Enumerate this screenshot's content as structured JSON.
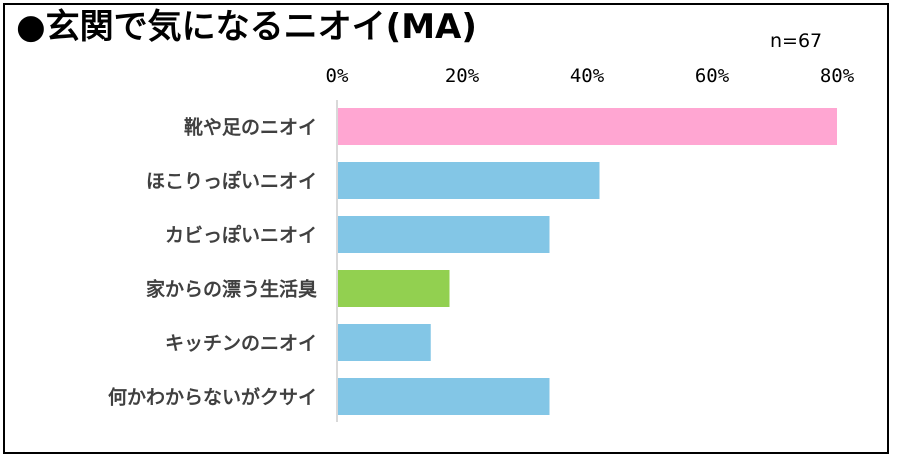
{
  "chart_data": {
    "type": "bar",
    "orientation": "horizontal",
    "title": "●玄関で気になるニオイ(MA)",
    "annotation": "n=67",
    "categories": [
      "靴や足のニオイ",
      "ほこりっぽいニオイ",
      "カビっぽいニオイ",
      "家からの漂う生活臭",
      "キッチンのニオイ",
      "何かわからないがクサイ"
    ],
    "values": [
      80,
      42,
      34,
      18,
      15,
      34
    ],
    "bar_colors": [
      "#ffa6d2",
      "#83c6e6",
      "#83c6e6",
      "#92d050",
      "#83c6e6",
      "#83c6e6"
    ],
    "xlim": [
      0,
      80
    ],
    "x_tick_values": [
      0,
      20,
      40,
      60,
      80
    ],
    "x_tick_labels": [
      "0%",
      "20%",
      "40%",
      "60%",
      "80%"
    ],
    "x_axis_position": "top",
    "grid": false,
    "legend": "none",
    "xlabel": "",
    "ylabel": ""
  }
}
